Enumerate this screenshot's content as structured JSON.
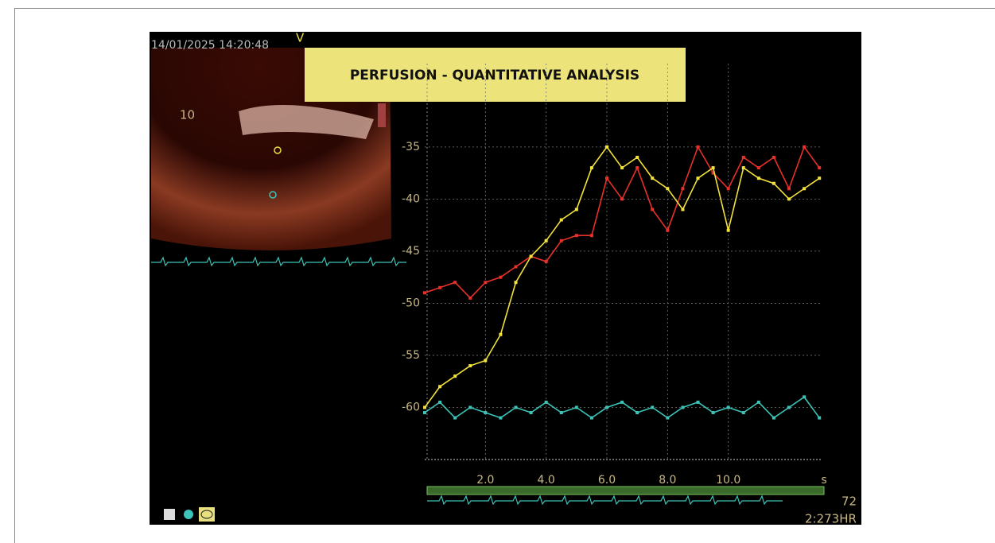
{
  "chart_data": {
    "type": "line",
    "title": "PERFUSION - QUANTITATIVE ANALYSIS",
    "x_label": "s",
    "annotations": [
      "14/01/2025 14:20:48",
      "V",
      "10",
      "72",
      "2:273HR"
    ],
    "x": [
      0,
      0.5,
      1,
      1.5,
      2,
      2.5,
      3,
      3.5,
      4,
      4.5,
      5,
      5.5,
      6,
      6.5,
      7,
      7.5,
      8,
      8.5,
      9,
      9.5,
      10,
      10.5,
      11,
      11.5,
      12,
      12.5,
      13
    ],
    "series": [
      {
        "color": "#e8302a",
        "values": [
          -49,
          -48.5,
          -48,
          -49.5,
          -48,
          -47.5,
          -46.5,
          -45.5,
          -46,
          -44,
          -43.5,
          -43.5,
          -38,
          -40,
          -37,
          -41,
          -43,
          -39,
          -35,
          -37.5,
          -39,
          -36,
          -37,
          -36,
          -39,
          -35,
          -37
        ]
      },
      {
        "color": "#f2e23a",
        "values": [
          -60,
          -58,
          -57,
          -56,
          -55.5,
          -53,
          -48,
          -45.5,
          -44,
          -42,
          -41,
          -37,
          -35,
          -37,
          -36,
          -38,
          -39,
          -41,
          -38,
          -37,
          -43,
          -37,
          -38,
          -38.5,
          -40,
          -39,
          -38
        ]
      },
      {
        "color": "#3cc4b8",
        "values": [
          -60.5,
          -59.5,
          -61,
          -60,
          -60.5,
          -61,
          -60,
          -60.5,
          -59.5,
          -60.5,
          -60,
          -61,
          -60,
          -59.5,
          -60.5,
          -60,
          -61,
          -60,
          -59.5,
          -60.5,
          -60,
          -60.5,
          -59.5,
          -61,
          -60,
          -59,
          -61
        ]
      }
    ],
    "xlim": [
      0,
      13.1
    ],
    "ylim": [
      -65,
      -27
    ],
    "xticks": [
      {
        "value": 2,
        "label": "2.0"
      },
      {
        "value": 4,
        "label": "4.0"
      },
      {
        "value": 6,
        "label": "6.0"
      },
      {
        "value": 8,
        "label": "8.0"
      },
      {
        "value": 10,
        "label": "10.0"
      }
    ],
    "yticks": [
      -35,
      -40,
      -45,
      -50,
      -55,
      -60
    ],
    "grid": true
  }
}
